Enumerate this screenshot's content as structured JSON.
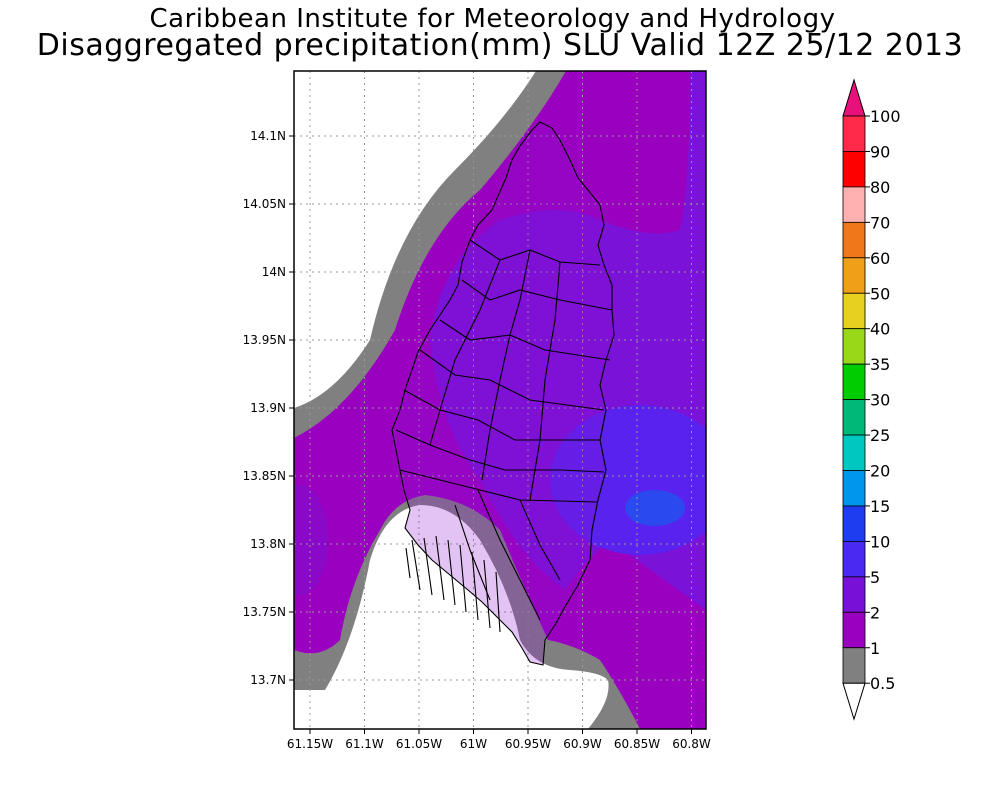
{
  "title": {
    "line1": "Caribbean Institute for Meteorology and Hydrology",
    "line2": "Disaggregated precipitation(mm) SLU Valid 12Z 25/12 2013"
  },
  "map": {
    "lat_ticks": [
      "14.1N",
      "14.05N",
      "14N",
      "13.95N",
      "13.9N",
      "13.85N",
      "13.8N",
      "13.75N",
      "13.7N"
    ],
    "lon_ticks": [
      "61.15W",
      "61.1W",
      "61.05W",
      "61W",
      "60.95W",
      "60.9W",
      "60.85W",
      "60.8W"
    ],
    "gridlines": true,
    "colors": {
      "grey_band": "#808080",
      "purple": "#9a00c0",
      "violet": "#7b12d8",
      "blue_violet": "#5a22ee",
      "blue": "#2a4af0",
      "land_line": "#000000"
    }
  },
  "colorbar": {
    "labels": [
      "100",
      "90",
      "80",
      "70",
      "60",
      "50",
      "40",
      "35",
      "30",
      "25",
      "20",
      "15",
      "10",
      "5",
      "2",
      "1",
      "0.5"
    ],
    "colors": [
      "#ff2a4a",
      "#ff0000",
      "#ffb0b0",
      "#f07818",
      "#f0a018",
      "#e8d020",
      "#98d818",
      "#00cc00",
      "#00b878",
      "#00c8c0",
      "#0096ee",
      "#1e3cf0",
      "#4a2af0",
      "#7810d8",
      "#9a00c0",
      "#808080"
    ],
    "top_arrow_color": "#e8107a",
    "bottom_arrow_color": "#ffffff"
  }
}
